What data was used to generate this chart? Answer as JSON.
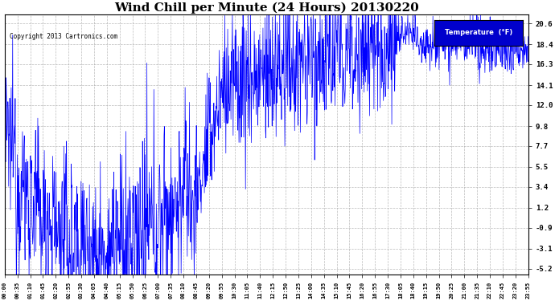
{
  "title": "Wind Chill per Minute (24 Hours) 20130220",
  "copyright_text": "Copyright 2013 Cartronics.com",
  "legend_label": "Temperature  (°F)",
  "yticks": [
    20.6,
    18.4,
    16.3,
    14.1,
    12.0,
    9.8,
    7.7,
    5.5,
    3.4,
    1.2,
    -0.9,
    -3.1,
    -5.2
  ],
  "xtick_labels": [
    "00:00",
    "00:35",
    "01:10",
    "01:45",
    "02:20",
    "02:55",
    "03:30",
    "04:05",
    "04:40",
    "05:15",
    "05:50",
    "06:25",
    "07:00",
    "07:35",
    "08:10",
    "08:45",
    "09:20",
    "09:55",
    "10:30",
    "11:05",
    "11:40",
    "12:15",
    "12:50",
    "13:25",
    "14:00",
    "14:35",
    "15:10",
    "15:45",
    "16:20",
    "16:55",
    "17:30",
    "18:05",
    "18:40",
    "19:15",
    "19:50",
    "20:25",
    "21:00",
    "21:35",
    "22:10",
    "22:45",
    "23:20",
    "23:55"
  ],
  "line_color": "#0000ff",
  "background_color": "#ffffff",
  "plot_bg_color": "#ffffff",
  "title_fontsize": 11,
  "legend_bg": "#0000cc",
  "legend_text_color": "#ffffff",
  "ylim": [
    -5.8,
    21.5
  ],
  "figsize": [
    6.9,
    3.75
  ],
  "dpi": 100
}
